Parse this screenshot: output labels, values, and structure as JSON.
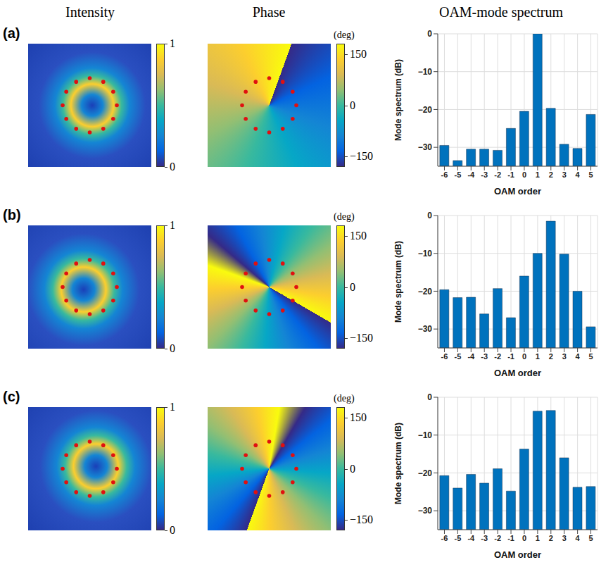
{
  "column_titles": [
    "Intensity",
    "Phase",
    "OAM-mode spectrum"
  ],
  "panels": [
    {
      "label": "(a)",
      "intensity_colorbar": {
        "range": [
          0,
          1
        ],
        "ticks": [
          0,
          1
        ]
      },
      "phase_colorbar": {
        "title": "(deg)",
        "range": [
          -180,
          180
        ],
        "ticks": [
          {
            "value": -150,
            "label": "−150"
          },
          0,
          150
        ]
      }
    },
    {
      "label": "(b)",
      "intensity_colorbar": {
        "range": [
          0,
          1
        ],
        "ticks": [
          0,
          1
        ]
      },
      "phase_colorbar": {
        "title": "(deg)",
        "range": [
          -180,
          180
        ],
        "ticks": [
          {
            "value": -150,
            "label": "−150"
          },
          0,
          150
        ]
      }
    },
    {
      "label": "(c)",
      "intensity_colorbar": {
        "range": [
          0,
          1
        ],
        "ticks": [
          0,
          1
        ]
      },
      "phase_colorbar": {
        "title": "(deg)",
        "range": [
          -180,
          180
        ],
        "ticks": [
          {
            "value": -150,
            "label": "−150"
          },
          0,
          150
        ]
      }
    }
  ],
  "chart_data": [
    {
      "type": "bar",
      "x_label": "OAM order",
      "y_label": "Mode spectrum (dB)",
      "categories": [
        "-6",
        "-5",
        "-4",
        "-3",
        "-2",
        "-1",
        "0",
        "1",
        "2",
        "3",
        "4",
        "5"
      ],
      "values": [
        -29.5,
        -33.5,
        -30.5,
        -30.5,
        -30.8,
        -25,
        -20.5,
        0,
        -19.7,
        -29.2,
        -30.3,
        -21.3
      ],
      "color": "#0072BD",
      "ylim": [
        -35,
        0
      ],
      "yticks": [
        {
          "value": -30,
          "label": "−30"
        },
        {
          "value": -20,
          "label": "−20"
        },
        {
          "value": -10,
          "label": "−10"
        },
        0
      ],
      "grid": true
    },
    {
      "type": "bar",
      "x_label": "OAM order",
      "y_label": "Mode spectrum (dB)",
      "categories": [
        "-6",
        "-5",
        "-4",
        "-3",
        "-2",
        "-1",
        "0",
        "1",
        "2",
        "3",
        "4",
        "5"
      ],
      "values": [
        -19.6,
        -21.7,
        -21.6,
        -26,
        -19.3,
        -27,
        -16,
        -10,
        -1.5,
        -10.2,
        -20,
        -29.4
      ],
      "color": "#0072BD",
      "ylim": [
        -35,
        0
      ],
      "yticks": [
        {
          "value": -30,
          "label": "−30"
        },
        {
          "value": -20,
          "label": "−20"
        },
        {
          "value": -10,
          "label": "−10"
        },
        0
      ],
      "grid": true
    },
    {
      "type": "bar",
      "x_label": "OAM order",
      "y_label": "Mode spectrum (dB)",
      "categories": [
        "-6",
        "-5",
        "-4",
        "-3",
        "-2",
        "-1",
        "0",
        "1",
        "2",
        "3",
        "4",
        "5"
      ],
      "values": [
        -20.7,
        -24,
        -20.4,
        -22.7,
        -18.9,
        -24.8,
        -13.7,
        -3.7,
        -3.5,
        -16,
        -23.8,
        -23.6
      ],
      "color": "#0072BD",
      "ylim": [
        -35,
        0
      ],
      "yticks": [
        {
          "value": -30,
          "label": "−30"
        },
        {
          "value": -20,
          "label": "−20"
        },
        {
          "value": -10,
          "label": "−10"
        },
        0
      ],
      "grid": true
    }
  ]
}
